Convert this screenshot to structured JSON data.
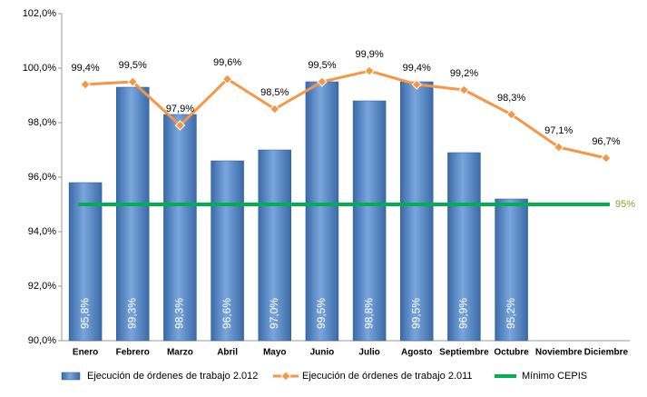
{
  "chart_data": {
    "type": "bar",
    "categories": [
      "Enero",
      "Febrero",
      "Marzo",
      "Abril",
      "Mayo",
      "Junio",
      "Julio",
      "Agosto",
      "Septiembre",
      "Octubre",
      "Noviembre",
      "Diciembre"
    ],
    "series": [
      {
        "name": "Ejecución de órdenes de trabajo 2.012",
        "type": "bar",
        "color": "#4f81bd",
        "values": [
          95.8,
          99.3,
          98.3,
          96.6,
          97.0,
          99.5,
          98.8,
          99.5,
          96.9,
          95.2,
          null,
          null
        ],
        "value_labels": [
          "95,8%",
          "99,3%",
          "98,3%",
          "96,6%",
          "97,0%",
          "99,5%",
          "98,8%",
          "99,5%",
          "96,9%",
          "95,2%",
          null,
          null
        ]
      },
      {
        "name": "Ejecución de órdenes de trabajo 2.011",
        "type": "line",
        "color": "#f79646",
        "values": [
          99.4,
          99.5,
          97.9,
          99.6,
          98.5,
          99.5,
          99.9,
          99.4,
          99.2,
          98.3,
          97.1,
          96.7
        ],
        "value_labels": [
          "99,4%",
          "99,5%",
          "97,9%",
          "99,6%",
          "98,5%",
          "99,5%",
          "99,9%",
          "99,4%",
          "99,2%",
          "98,3%",
          "97,1%",
          "96,7%"
        ]
      }
    ],
    "reference_line": {
      "name": "Mínimo CEPIS",
      "value": 95,
      "label": "95%",
      "color": "#00b050",
      "label_color": "#9b9b2f"
    },
    "ylim": [
      90,
      102
    ],
    "yticks": [
      {
        "value": 90,
        "label": "90,0%"
      },
      {
        "value": 92,
        "label": "92,0%"
      },
      {
        "value": 94,
        "label": "94,0%"
      },
      {
        "value": 96,
        "label": "96,0%"
      },
      {
        "value": 98,
        "label": "98,0%"
      },
      {
        "value": 100,
        "label": "100,0%"
      },
      {
        "value": 102,
        "label": "102,0%"
      }
    ]
  }
}
